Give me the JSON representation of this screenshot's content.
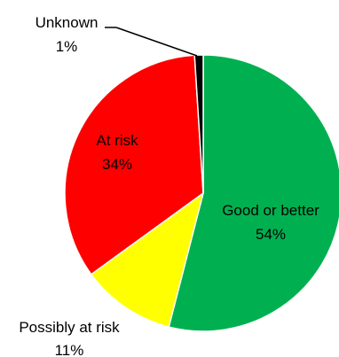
{
  "chart_data": {
    "type": "pie",
    "title": "",
    "start_angle_deg": 0,
    "direction": "clockwise",
    "slices": [
      {
        "label": "Good or better",
        "value": 54,
        "value_text": "54%",
        "color": "#00b050"
      },
      {
        "label": "Possibly at risk",
        "value": 11,
        "value_text": "11%",
        "color": "#ffff00"
      },
      {
        "label": "At risk",
        "value": 34,
        "value_text": "34%",
        "color": "#ff0000"
      },
      {
        "label": "Unknown",
        "value": 1,
        "value_text": "1%",
        "color": "#000000"
      }
    ],
    "legend": "none",
    "label_placement": "inside for large slices, outside for small slices"
  }
}
